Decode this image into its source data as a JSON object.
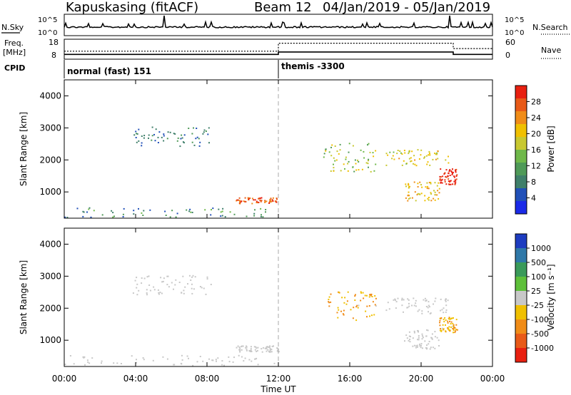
{
  "header": {
    "station": "Kapuskasing (fitACF)",
    "beam": "Beam 12",
    "date_range": "04/Jan/2019 - 05/Jan/2019"
  },
  "noise_panel": {
    "left_label": "N.Sky",
    "right_label": "N.Search",
    "ticks_left": [
      "10^5",
      "10^0"
    ],
    "ticks_right": [
      "10^5",
      "10^0"
    ]
  },
  "freq_panel": {
    "left_label_1": "Freq.",
    "left_label_2": "[MHz]",
    "right_label": "Nave",
    "ticks_left": [
      "18",
      "8"
    ],
    "ticks_right": [
      "60",
      "0"
    ],
    "freq_steps": [
      {
        "t": 0,
        "v": 10.4
      },
      {
        "t": 12,
        "v": 11.6
      },
      {
        "t": 21.8,
        "v": 10.4
      },
      {
        "t": 24,
        "v": 10.4
      }
    ],
    "nave_steps": [
      {
        "t": 0,
        "v": 24
      },
      {
        "t": 12,
        "v": 48
      },
      {
        "t": 21.8,
        "v": 32
      },
      {
        "t": 24,
        "v": 32
      }
    ]
  },
  "cpid_panel": {
    "label": "CPID",
    "modes": [
      {
        "start": 0,
        "end": 12,
        "label": "normal (fast) 151"
      },
      {
        "start": 12,
        "end": 24,
        "label": "themis -3300"
      }
    ]
  },
  "power_panel": {
    "ylabel": "Slant Range [km]",
    "yticks": [
      "1000",
      "2000",
      "3000",
      "4000"
    ],
    "colorbar": {
      "label": "Power [dB]",
      "ticks": [
        "4",
        "8",
        "12",
        "16",
        "20",
        "24",
        "28"
      ],
      "colors": [
        "#1a2ae8",
        "#2150b8",
        "#3f7f6a",
        "#4f9a58",
        "#6fb84a",
        "#c8c830",
        "#f0c000",
        "#f08c18",
        "#e85a18",
        "#e82010"
      ]
    }
  },
  "velocity_panel": {
    "ylabel": "Slant Range [km]",
    "yticks": [
      "1000",
      "2000",
      "3000",
      "4000"
    ],
    "colorbar": {
      "label": "Velocity [m s⁻¹]",
      "ticks": [
        "1000",
        "500",
        "100",
        "25",
        "-25",
        "-100",
        "-500",
        "-1000"
      ],
      "colors": [
        "#1d3cc0",
        "#2f78a8",
        "#3a9a5a",
        "#5ec03a",
        "#c8c8c8",
        "#f0c000",
        "#f08c18",
        "#e85a18",
        "#e82010"
      ]
    }
  },
  "x_axis": {
    "label": "Time UT",
    "ticks": [
      "00:00",
      "04:00",
      "08:00",
      "12:00",
      "16:00",
      "20:00",
      "00:00"
    ]
  },
  "chart_data": {
    "type": "heatmap",
    "title": "Kapuskasing (fitACF)",
    "xlabel": "Time UT",
    "ylabel": "Slant Range [km]",
    "xlim": [
      0,
      24
    ],
    "ylim": [
      180,
      4500
    ],
    "panels": [
      {
        "name": "Power [dB]",
        "zlim": [
          0,
          30
        ],
        "regions": [
          {
            "t": [
              0,
              12
            ],
            "r": [
              180,
              500
            ],
            "z": [
              4,
              14
            ]
          },
          {
            "t": [
              3.8,
              8.2
            ],
            "r": [
              2400,
              3000
            ],
            "z": [
              4,
              10
            ]
          },
          {
            "t": [
              9.6,
              12
            ],
            "r": [
              600,
              800
            ],
            "z": [
              22,
              30
            ]
          },
          {
            "t": [
              14.5,
              17.5
            ],
            "r": [
              1600,
              2500
            ],
            "z": [
              10,
              20
            ]
          },
          {
            "t": [
              18,
              21.5
            ],
            "r": [
              1800,
              2300
            ],
            "z": [
              14,
              22
            ]
          },
          {
            "t": [
              19,
              21
            ],
            "r": [
              700,
              1300
            ],
            "z": [
              16,
              24
            ]
          },
          {
            "t": [
              21,
              22
            ],
            "r": [
              1200,
              1700
            ],
            "z": [
              26,
              30
            ]
          }
        ]
      },
      {
        "name": "Velocity [m s-1]",
        "zlim": [
          -1000,
          1000
        ],
        "regions": [
          {
            "t": [
              0,
              12
            ],
            "r": [
              180,
              500
            ],
            "z": [
              25,
              100
            ]
          },
          {
            "t": [
              3.8,
              8.2
            ],
            "r": [
              2400,
              3000
            ],
            "z": [
              -25,
              25
            ]
          },
          {
            "t": [
              9.6,
              12
            ],
            "r": [
              600,
              800
            ],
            "z": [
              -25,
              25
            ]
          },
          {
            "t": [
              14.5,
              17.5
            ],
            "r": [
              1600,
              2500
            ],
            "z": [
              -500,
              -100
            ]
          },
          {
            "t": [
              18,
              21.5
            ],
            "r": [
              1800,
              2300
            ],
            "z": [
              -25,
              25
            ]
          },
          {
            "t": [
              19,
              21
            ],
            "r": [
              700,
              1300
            ],
            "z": [
              -100,
              -25
            ]
          },
          {
            "t": [
              21,
              22
            ],
            "r": [
              1200,
              1700
            ],
            "z": [
              -500,
              -100
            ]
          }
        ]
      }
    ]
  }
}
